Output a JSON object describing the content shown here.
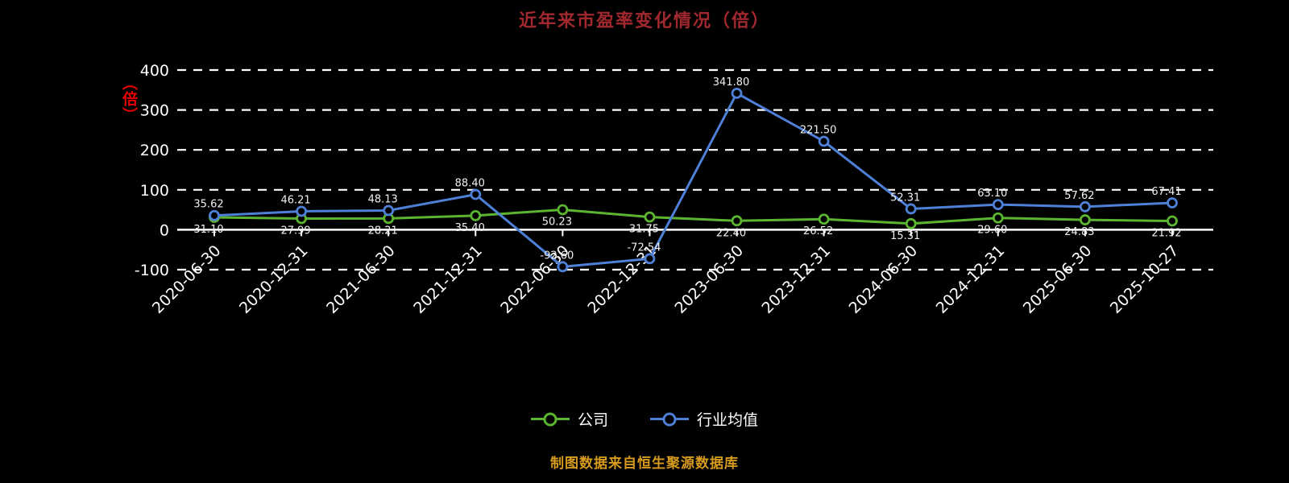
{
  "footer": {
    "note": "制图数据来自恒生聚源数据库"
  },
  "colors": {
    "background": "#000000",
    "title": "#A0282E",
    "axis": "#FFFFFF",
    "grid": "#FFFFFF",
    "tick_label": "#FFFFFF",
    "data_label": "#F0F0F0",
    "y_unit": "#E60000",
    "footer": "#D79B1E",
    "legend_label": "#FFFFFF"
  },
  "chart_data": {
    "type": "line",
    "title": "近年来市盈率变化情况（倍）",
    "ylabel": "（倍）",
    "xlabel": "",
    "ylim": [
      -100,
      400
    ],
    "y_ticks": [
      400,
      300,
      200,
      100,
      0,
      -100
    ],
    "grid": "horizontal-dashed",
    "legend_position": "bottom",
    "categories": [
      "2020-06-30",
      "2020-12-31",
      "2021-06-30",
      "2021-12-31",
      "2022-06-30",
      "2022-12-31",
      "2023-06-30",
      "2023-12-31",
      "2024-06-30",
      "2024-12-31",
      "2025-06-30",
      "2025-10-27"
    ],
    "series": [
      {
        "name": "公司",
        "color": "#5CB531",
        "values": [
          31.1,
          27.99,
          28.21,
          35.4,
          50.23,
          31.75,
          22.4,
          26.52,
          15.31,
          29.6,
          24.83,
          21.92
        ]
      },
      {
        "name": "行业均值",
        "color": "#4E80D8",
        "values": [
          35.62,
          46.21,
          48.13,
          88.4,
          -92.6,
          -72.54,
          341.8,
          221.5,
          52.31,
          63.1,
          57.62,
          67.41
        ]
      }
    ]
  }
}
